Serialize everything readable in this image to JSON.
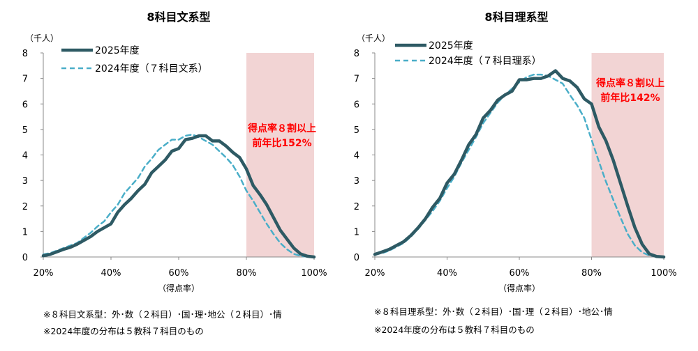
{
  "chart_data": [
    {
      "type": "line",
      "title": "8科目文系型",
      "y_unit": "（千人）",
      "xlabel": "（得点率）",
      "x_ticks": [
        "20%",
        "40%",
        "60%",
        "80%",
        "100%"
      ],
      "y_ticks": [
        "0",
        "1",
        "2",
        "3",
        "4",
        "5",
        "6",
        "7",
        "8"
      ],
      "xlim": [
        20,
        100
      ],
      "ylim": [
        0,
        8
      ],
      "highlight": {
        "from": 80,
        "to": 100,
        "color": "#f2d4d4"
      },
      "annotation": [
        "得点率８割以上",
        "前年比152%"
      ],
      "annotation_color": "#ff0000",
      "legend_position": "top-left",
      "series": [
        {
          "name": "2025年度",
          "style": "solid",
          "color": "#2e5a64",
          "x": [
            20,
            22,
            24,
            26,
            28,
            30,
            32,
            34,
            36,
            38,
            40,
            42,
            44,
            46,
            48,
            50,
            52,
            54,
            56,
            58,
            60,
            62,
            64,
            66,
            68,
            70,
            72,
            74,
            76,
            78,
            80,
            82,
            84,
            86,
            88,
            90,
            92,
            94,
            96,
            98,
            100
          ],
          "y": [
            0.05,
            0.1,
            0.2,
            0.3,
            0.38,
            0.5,
            0.65,
            0.8,
            1.0,
            1.15,
            1.3,
            1.75,
            2.05,
            2.3,
            2.6,
            2.85,
            3.3,
            3.55,
            3.8,
            4.15,
            4.25,
            4.6,
            4.65,
            4.75,
            4.75,
            4.55,
            4.55,
            4.35,
            4.1,
            3.9,
            3.45,
            2.8,
            2.45,
            2.05,
            1.55,
            1.05,
            0.7,
            0.35,
            0.12,
            0.03,
            0
          ]
        },
        {
          "name": "2024年度（７科目文系）",
          "style": "dashed",
          "color": "#4aaec8",
          "x": [
            20,
            22,
            24,
            26,
            28,
            30,
            32,
            34,
            36,
            38,
            40,
            42,
            44,
            46,
            48,
            50,
            52,
            54,
            56,
            58,
            60,
            62,
            64,
            66,
            68,
            70,
            72,
            74,
            76,
            78,
            80,
            82,
            84,
            86,
            88,
            90,
            92,
            94,
            96,
            98,
            100
          ],
          "y": [
            0.1,
            0.15,
            0.25,
            0.35,
            0.45,
            0.55,
            0.75,
            0.95,
            1.2,
            1.4,
            1.75,
            2.05,
            2.5,
            2.8,
            3.1,
            3.55,
            3.85,
            4.2,
            4.4,
            4.6,
            4.6,
            4.75,
            4.8,
            4.7,
            4.55,
            4.4,
            4.15,
            3.9,
            3.6,
            3.15,
            2.6,
            2.2,
            1.75,
            1.3,
            0.9,
            0.55,
            0.3,
            0.12,
            0.04,
            0.01,
            0
          ]
        }
      ]
    },
    {
      "type": "line",
      "title": "8科目理系型",
      "y_unit": "（千人）",
      "xlabel": "（得点率）",
      "x_ticks": [
        "20%",
        "40%",
        "60%",
        "80%",
        "100%"
      ],
      "y_ticks": [
        "0",
        "1",
        "2",
        "3",
        "4",
        "5",
        "6",
        "7",
        "8"
      ],
      "xlim": [
        20,
        100
      ],
      "ylim": [
        0,
        8
      ],
      "highlight": {
        "from": 80,
        "to": 100,
        "color": "#f2d4d4"
      },
      "annotation": [
        "得点率８割以上",
        "前年比142%"
      ],
      "annotation_color": "#ff0000",
      "legend_position": "top-left",
      "series": [
        {
          "name": "2025年度",
          "style": "solid",
          "color": "#2e5a64",
          "x": [
            20,
            22,
            24,
            26,
            28,
            30,
            32,
            34,
            36,
            38,
            40,
            42,
            44,
            46,
            48,
            50,
            52,
            54,
            56,
            58,
            60,
            62,
            64,
            66,
            68,
            70,
            72,
            74,
            76,
            78,
            80,
            82,
            84,
            86,
            88,
            90,
            92,
            94,
            96,
            98,
            100
          ],
          "y": [
            0.1,
            0.2,
            0.3,
            0.45,
            0.6,
            0.85,
            1.15,
            1.5,
            1.95,
            2.3,
            2.9,
            3.25,
            3.8,
            4.4,
            4.8,
            5.45,
            5.75,
            6.15,
            6.35,
            6.5,
            6.95,
            6.95,
            7.0,
            7.0,
            7.1,
            7.3,
            7.0,
            6.9,
            6.65,
            6.2,
            6.0,
            5.1,
            4.55,
            3.8,
            2.9,
            2.0,
            1.15,
            0.5,
            0.12,
            0.02,
            0
          ]
        },
        {
          "name": "2024年度（７科目理系）",
          "style": "dashed",
          "color": "#4aaec8",
          "x": [
            20,
            22,
            24,
            26,
            28,
            30,
            32,
            34,
            36,
            38,
            40,
            42,
            44,
            46,
            48,
            50,
            52,
            54,
            56,
            58,
            60,
            62,
            64,
            66,
            68,
            70,
            72,
            74,
            76,
            78,
            80,
            82,
            84,
            86,
            88,
            90,
            92,
            94,
            96,
            98,
            100
          ],
          "y": [
            0.1,
            0.15,
            0.25,
            0.4,
            0.55,
            0.8,
            1.1,
            1.45,
            1.8,
            2.2,
            2.7,
            3.15,
            3.7,
            4.2,
            4.7,
            5.25,
            5.65,
            6.05,
            6.35,
            6.6,
            6.85,
            7.05,
            7.15,
            7.15,
            7.1,
            6.95,
            6.8,
            6.35,
            5.95,
            5.45,
            4.6,
            3.75,
            2.95,
            2.25,
            1.55,
            0.9,
            0.45,
            0.18,
            0.06,
            0.02,
            0
          ]
        }
      ]
    }
  ],
  "notes": [
    [
      "※８科目文系型：外･数（２科目）･国･理･地公（２科目）･情",
      "※2024年度の分布は５教科７科目のもの"
    ],
    [
      "※８科目理系型：外･数（２科目）･国･理（２科目）･地公･情",
      "※2024年度の分布は５教科７科目のもの"
    ]
  ]
}
